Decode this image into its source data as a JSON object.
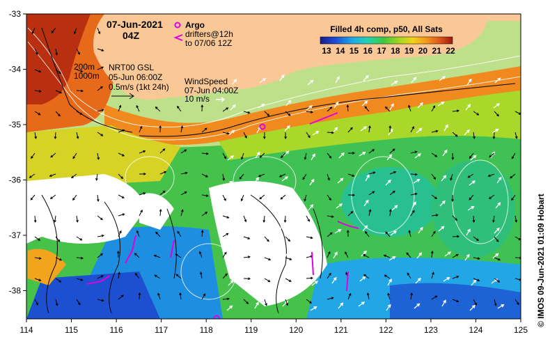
{
  "header": {
    "date": "07-Jun-2021",
    "hour": "04Z"
  },
  "legend": {
    "argo_label": "Argo",
    "drifters_label_1": "drifters@12h",
    "drifters_label_2": "to 07/06 12Z",
    "colorbar_title": "Filled 4h comp, p50, All Sats",
    "colorbar_ticks": [
      "13",
      "14",
      "15",
      "16",
      "17",
      "18",
      "19",
      "20",
      "21",
      "22"
    ]
  },
  "annotations": {
    "iso_200": "200m",
    "iso_1000": "1000m",
    "current_line1": "NRT00 GSL",
    "current_line2": "05-Jun 06:00Z",
    "current_line3": "0.5m/s (1kt 24h)",
    "wind_line1": "WindSpeed",
    "wind_line2": "07-Jun 04:00Z",
    "wind_line3": "10 m/s"
  },
  "axes": {
    "x_ticks": [
      "114",
      "115",
      "116",
      "117",
      "118",
      "119",
      "120",
      "121",
      "122",
      "123",
      "124",
      "125"
    ],
    "y_ticks": [
      "-33",
      "-34",
      "-35",
      "-36",
      "-37",
      "-38"
    ]
  },
  "credit": "© IMOS 09-Jun-2021 01:09 Hobart",
  "colors": {
    "land": "#f9c896",
    "no_data": "#ffffff",
    "argo": "#e000e0",
    "drifter": "#e000e0"
  }
}
